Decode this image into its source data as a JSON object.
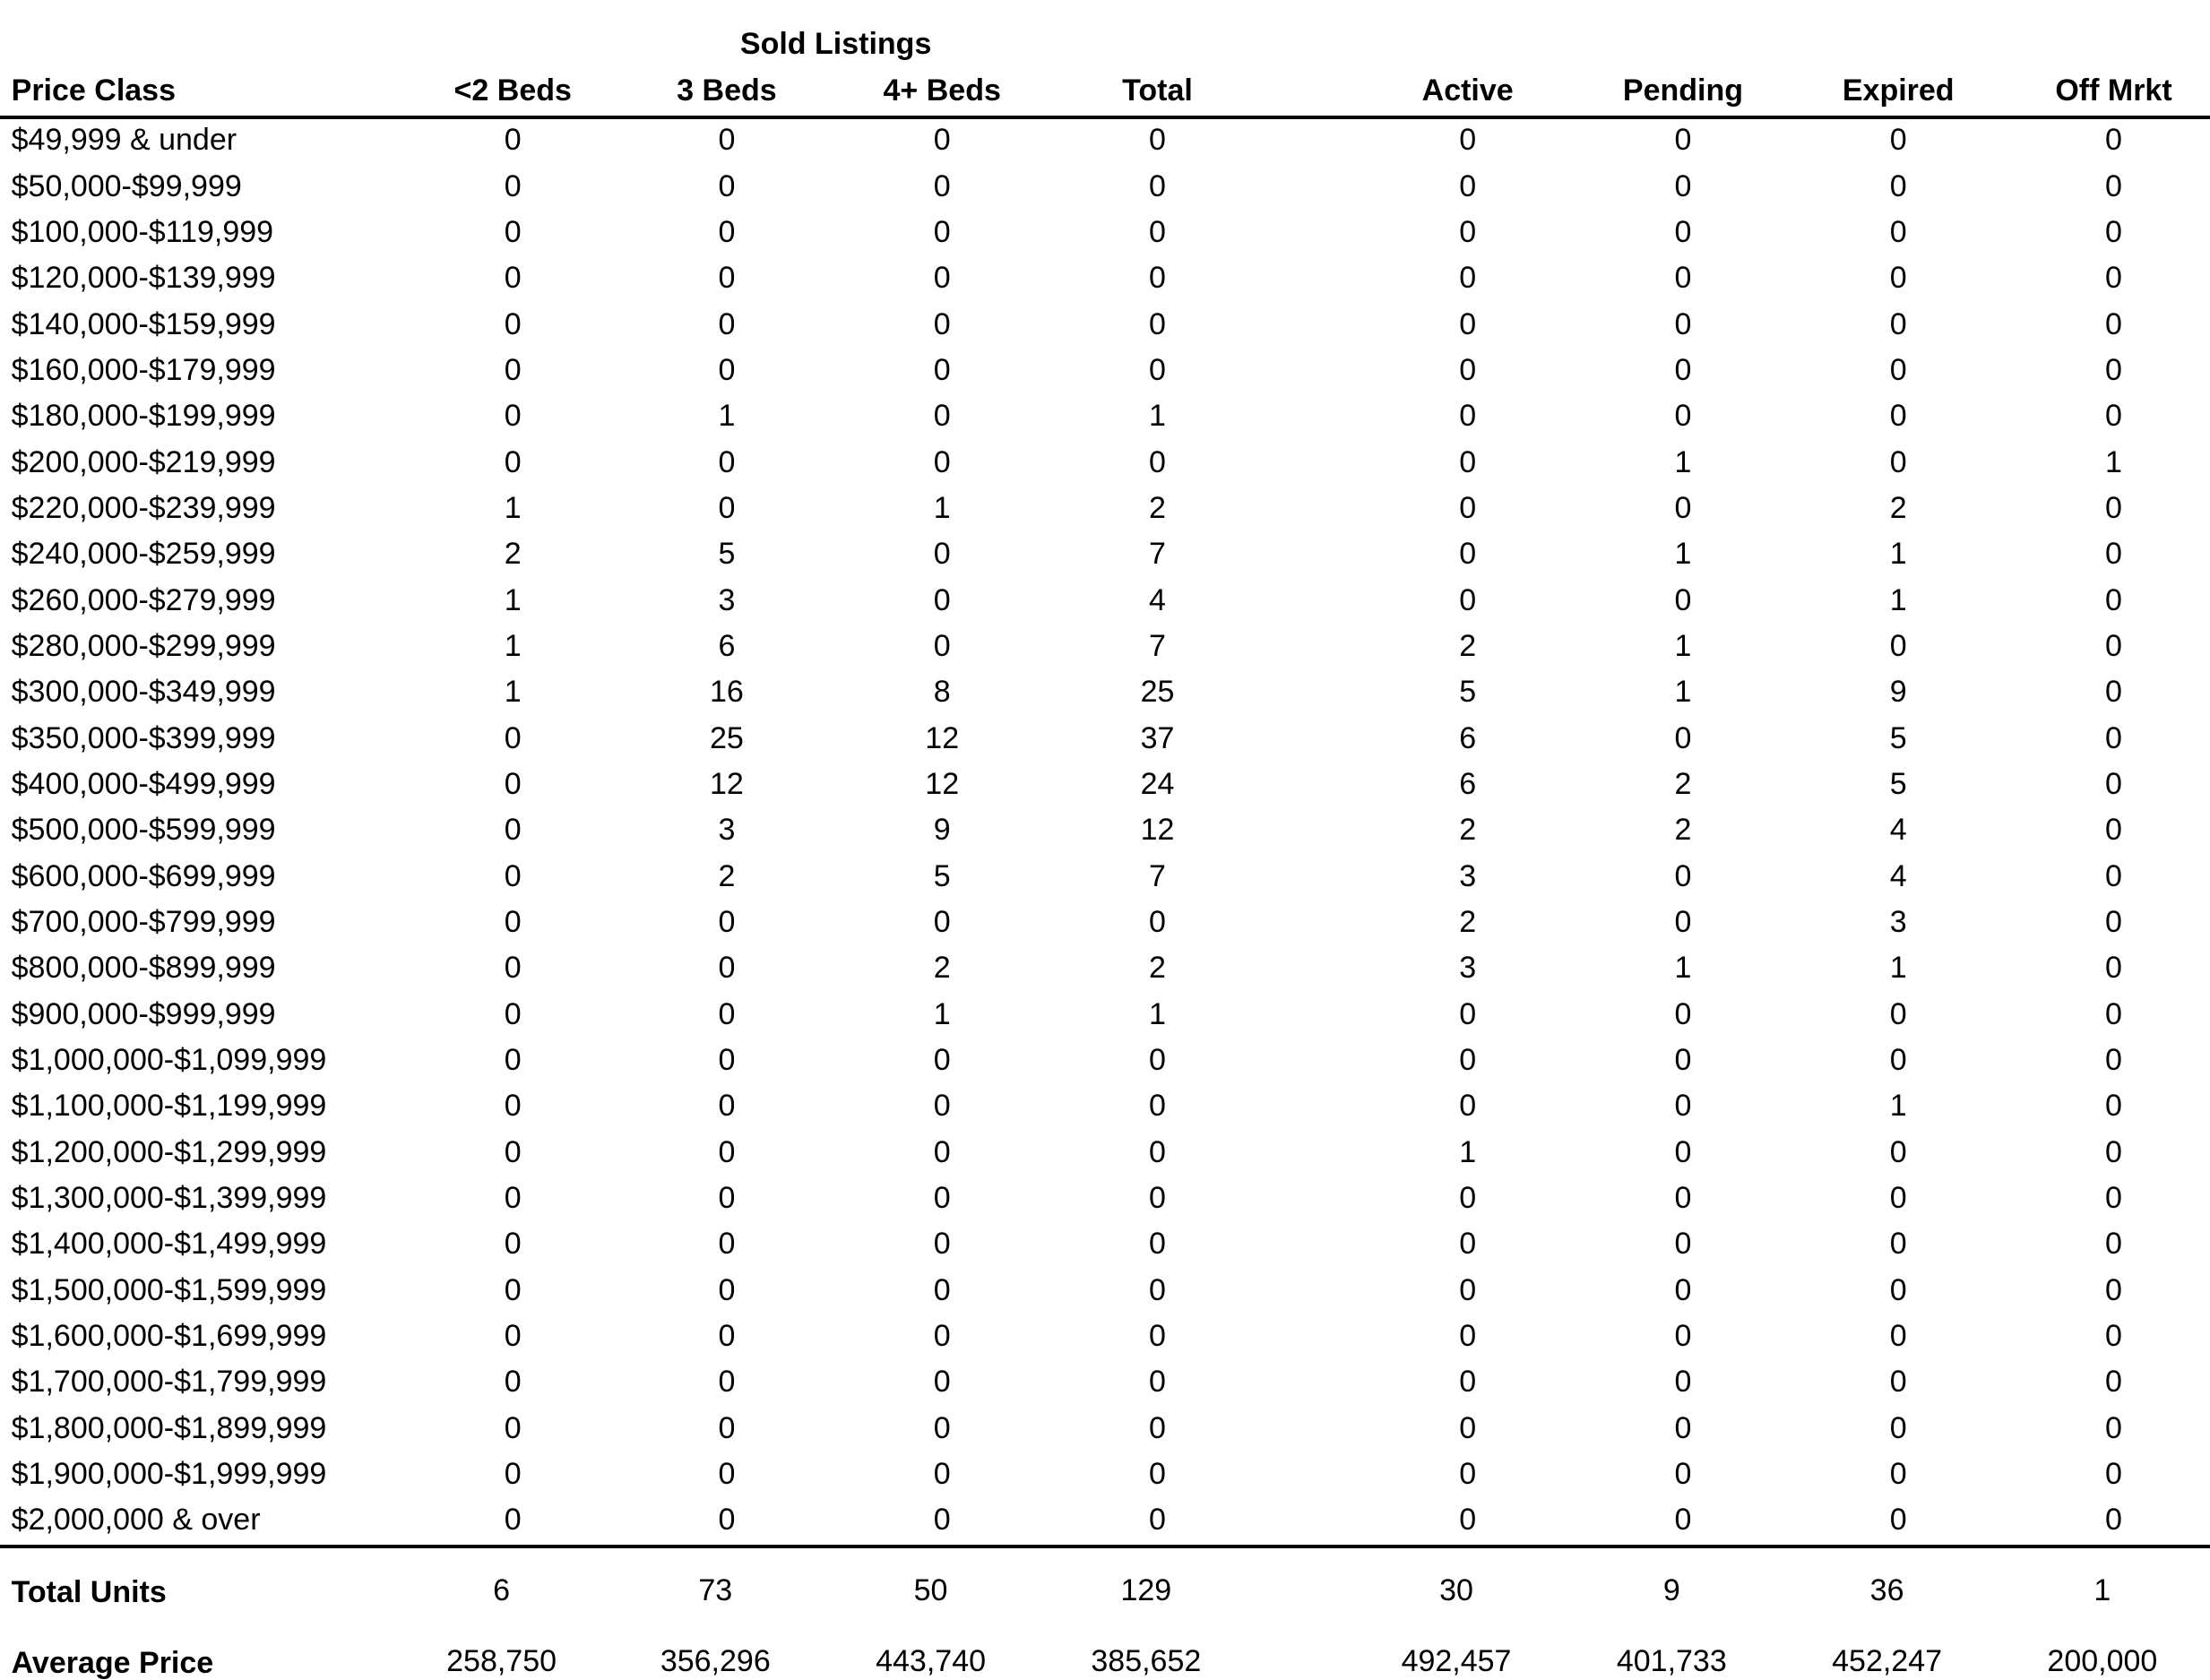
{
  "header": {
    "group_title": "Sold Listings",
    "columns": [
      "Price Class",
      "<2 Beds",
      "3 Beds",
      "4+ Beds",
      "Total",
      "Active",
      "Pending",
      "Expired",
      "Off Mrkt"
    ]
  },
  "table": {
    "rows": [
      {
        "label": "$49,999 & under",
        "values": [
          0,
          0,
          0,
          0,
          0,
          0,
          0,
          0
        ]
      },
      {
        "label": "$50,000-$99,999",
        "values": [
          0,
          0,
          0,
          0,
          0,
          0,
          0,
          0
        ]
      },
      {
        "label": "$100,000-$119,999",
        "values": [
          0,
          0,
          0,
          0,
          0,
          0,
          0,
          0
        ]
      },
      {
        "label": "$120,000-$139,999",
        "values": [
          0,
          0,
          0,
          0,
          0,
          0,
          0,
          0
        ]
      },
      {
        "label": "$140,000-$159,999",
        "values": [
          0,
          0,
          0,
          0,
          0,
          0,
          0,
          0
        ]
      },
      {
        "label": "$160,000-$179,999",
        "values": [
          0,
          0,
          0,
          0,
          0,
          0,
          0,
          0
        ]
      },
      {
        "label": "$180,000-$199,999",
        "values": [
          0,
          1,
          0,
          1,
          0,
          0,
          0,
          0
        ]
      },
      {
        "label": "$200,000-$219,999",
        "values": [
          0,
          0,
          0,
          0,
          0,
          1,
          0,
          1
        ]
      },
      {
        "label": "$220,000-$239,999",
        "values": [
          1,
          0,
          1,
          2,
          0,
          0,
          2,
          0
        ]
      },
      {
        "label": "$240,000-$259,999",
        "values": [
          2,
          5,
          0,
          7,
          0,
          1,
          1,
          0
        ]
      },
      {
        "label": "$260,000-$279,999",
        "values": [
          1,
          3,
          0,
          4,
          0,
          0,
          1,
          0
        ]
      },
      {
        "label": "$280,000-$299,999",
        "values": [
          1,
          6,
          0,
          7,
          2,
          1,
          0,
          0
        ]
      },
      {
        "label": "$300,000-$349,999",
        "values": [
          1,
          16,
          8,
          25,
          5,
          1,
          9,
          0
        ]
      },
      {
        "label": "$350,000-$399,999",
        "values": [
          0,
          25,
          12,
          37,
          6,
          0,
          5,
          0
        ]
      },
      {
        "label": "$400,000-$499,999",
        "values": [
          0,
          12,
          12,
          24,
          6,
          2,
          5,
          0
        ]
      },
      {
        "label": "$500,000-$599,999",
        "values": [
          0,
          3,
          9,
          12,
          2,
          2,
          4,
          0
        ]
      },
      {
        "label": "$600,000-$699,999",
        "values": [
          0,
          2,
          5,
          7,
          3,
          0,
          4,
          0
        ]
      },
      {
        "label": "$700,000-$799,999",
        "values": [
          0,
          0,
          0,
          0,
          2,
          0,
          3,
          0
        ]
      },
      {
        "label": "$800,000-$899,999",
        "values": [
          0,
          0,
          2,
          2,
          3,
          1,
          1,
          0
        ]
      },
      {
        "label": "$900,000-$999,999",
        "values": [
          0,
          0,
          1,
          1,
          0,
          0,
          0,
          0
        ]
      },
      {
        "label": "$1,000,000-$1,099,999",
        "values": [
          0,
          0,
          0,
          0,
          0,
          0,
          0,
          0
        ]
      },
      {
        "label": "$1,100,000-$1,199,999",
        "values": [
          0,
          0,
          0,
          0,
          0,
          0,
          1,
          0
        ]
      },
      {
        "label": "$1,200,000-$1,299,999",
        "values": [
          0,
          0,
          0,
          0,
          1,
          0,
          0,
          0
        ]
      },
      {
        "label": "$1,300,000-$1,399,999",
        "values": [
          0,
          0,
          0,
          0,
          0,
          0,
          0,
          0
        ]
      },
      {
        "label": "$1,400,000-$1,499,999",
        "values": [
          0,
          0,
          0,
          0,
          0,
          0,
          0,
          0
        ]
      },
      {
        "label": "$1,500,000-$1,599,999",
        "values": [
          0,
          0,
          0,
          0,
          0,
          0,
          0,
          0
        ]
      },
      {
        "label": "$1,600,000-$1,699,999",
        "values": [
          0,
          0,
          0,
          0,
          0,
          0,
          0,
          0
        ]
      },
      {
        "label": "$1,700,000-$1,799,999",
        "values": [
          0,
          0,
          0,
          0,
          0,
          0,
          0,
          0
        ]
      },
      {
        "label": "$1,800,000-$1,899,999",
        "values": [
          0,
          0,
          0,
          0,
          0,
          0,
          0,
          0
        ]
      },
      {
        "label": "$1,900,000-$1,999,999",
        "values": [
          0,
          0,
          0,
          0,
          0,
          0,
          0,
          0
        ]
      },
      {
        "label": "$2,000,000 & over",
        "values": [
          0,
          0,
          0,
          0,
          0,
          0,
          0,
          0
        ]
      }
    ]
  },
  "totals": [
    {
      "label": "Total Units",
      "values": [
        6,
        73,
        50,
        129,
        30,
        9,
        36,
        1
      ]
    },
    {
      "label": "Average Price",
      "values": [
        "258,750",
        "356,296",
        "443,740",
        "385,652",
        "492,457",
        "401,733",
        "452,247",
        "200,000"
      ]
    }
  ]
}
